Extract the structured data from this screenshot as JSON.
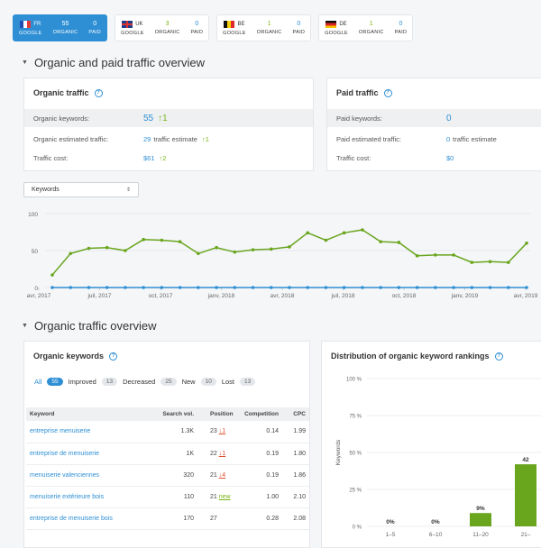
{
  "countries": [
    {
      "code": "FR",
      "flag": "flag-fr",
      "engine": "GOOGLE",
      "organic": "55",
      "organic_label": "ORGANIC",
      "paid": "0",
      "paid_label": "PAID",
      "active": true
    },
    {
      "code": "UK",
      "flag": "flag-uk",
      "engine": "GOOGLE",
      "organic": "3",
      "organic_label": "ORGANIC",
      "paid": "0",
      "paid_label": "PAID",
      "active": false
    },
    {
      "code": "BE",
      "flag": "flag-be",
      "engine": "GOOGLE",
      "organic": "1",
      "organic_label": "ORGANIC",
      "paid": "0",
      "paid_label": "PAID",
      "active": false
    },
    {
      "code": "DE",
      "flag": "flag-de",
      "engine": "GOOGLE",
      "organic": "1",
      "organic_label": "ORGANIC",
      "paid": "0",
      "paid_label": "PAID",
      "active": false
    }
  ],
  "overview_section": {
    "title": "Organic and paid traffic overview"
  },
  "organic_card": {
    "title": "Organic traffic",
    "keywords_label": "Organic keywords:",
    "keywords_value": "55",
    "keywords_delta": "↑1",
    "traffic_label": "Organic estimated traffic:",
    "traffic_value": "29",
    "traffic_suffix": "traffic estimate",
    "traffic_delta": "↑1",
    "cost_label": "Traffic cost:",
    "cost_value": "$61",
    "cost_delta": "↑2"
  },
  "paid_card": {
    "title": "Paid traffic",
    "keywords_label": "Paid keywords:",
    "keywords_value": "0",
    "traffic_label": "Paid estimated traffic:",
    "traffic_value": "0",
    "traffic_suffix": "traffic estimate",
    "cost_label": "Traffic cost:",
    "cost_value": "$0"
  },
  "metric_select": {
    "value": "Keywords"
  },
  "chart_data": [
    {
      "type": "line",
      "ylim": [
        0,
        100
      ],
      "yticks": [
        "0",
        "50",
        "100"
      ],
      "xticks": [
        "avr, 2017",
        "juil, 2017",
        "oct, 2017",
        "janv, 2018",
        "avr, 2018",
        "juil, 2018",
        "oct, 2018",
        "janv, 2019",
        "avr, 2019"
      ],
      "grid": true,
      "series": [
        {
          "color": "#6aa51e",
          "values": [
            17,
            46,
            53,
            54,
            50,
            65,
            64,
            62,
            46,
            54,
            48,
            51,
            52,
            55,
            74,
            64,
            74,
            78,
            62,
            61,
            43,
            44,
            44,
            34,
            35,
            34,
            60
          ]
        },
        {
          "color": "#2e8fd4",
          "values": [
            0,
            0,
            0,
            0,
            0,
            0,
            0,
            0,
            0,
            0,
            0,
            0,
            0,
            0,
            0,
            0,
            0,
            0,
            0,
            0,
            0,
            0,
            0,
            0,
            0,
            0,
            0
          ]
        }
      ]
    },
    {
      "type": "bar",
      "title": "Distribution of organic keyword rankings",
      "ylabel": "Keywords",
      "ylim": [
        0,
        100
      ],
      "yticks": [
        "0 %",
        "25 %",
        "50 %",
        "75 %",
        "100 %"
      ],
      "categories": [
        "1–5",
        "6–10",
        "11–20",
        "21–"
      ],
      "values": [
        0,
        0,
        9,
        42
      ],
      "labels": [
        "0%",
        "0%",
        "9%",
        "42"
      ]
    }
  ],
  "organic_section": {
    "title": "Organic traffic overview"
  },
  "keywords_card": {
    "title": "Organic keywords",
    "filters": [
      {
        "label": "All",
        "count": "55"
      },
      {
        "label": "Improved",
        "count": "13"
      },
      {
        "label": "Decreased",
        "count": "25"
      },
      {
        "label": "New",
        "count": "10"
      },
      {
        "label": "Lost",
        "count": "13"
      }
    ],
    "columns": [
      "Keyword",
      "Search vol.",
      "Position",
      "Competition",
      "CPC"
    ],
    "rows": [
      {
        "keyword": "entreprise menuiserie",
        "volume": "1.3K",
        "position": "23",
        "change": "↓1",
        "competition": "0.14",
        "cpc": "1.99"
      },
      {
        "keyword": "entreprise de menuiserie",
        "volume": "1K",
        "position": "22",
        "change": "↓1",
        "competition": "0.19",
        "cpc": "1.80"
      },
      {
        "keyword": "menuiserie valenciennes",
        "volume": "320",
        "position": "21",
        "change": "↓4",
        "competition": "0.19",
        "cpc": "1.86"
      },
      {
        "keyword": "menuiserie extérieure bois",
        "volume": "110",
        "position": "21",
        "change": "new",
        "competition": "1.00",
        "cpc": "2.10"
      },
      {
        "keyword": "entreprise de menuiserie bois",
        "volume": "170",
        "position": "27",
        "change": "",
        "competition": "0.28",
        "cpc": "2.08"
      }
    ]
  },
  "colors": {
    "accent": "#2e8fd4",
    "positive": "#7cb518",
    "negative": "#e04a2a"
  }
}
